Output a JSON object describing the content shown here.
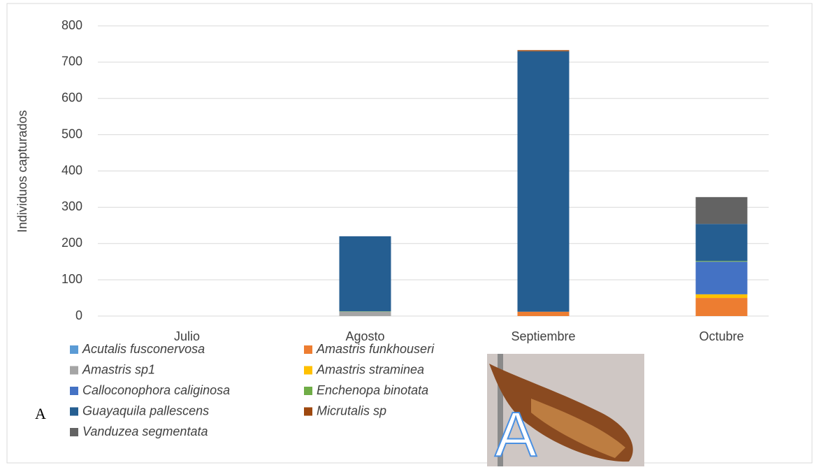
{
  "chart_data": {
    "type": "stacked_bar",
    "y_label": "Individuos capturados",
    "categories": [
      "Julio",
      "Agosto",
      "Septiembre",
      "Octubre"
    ],
    "series": [
      {
        "name": "Acutalis fusconervosa",
        "color": "#5b9bd5",
        "values": [
          0,
          0,
          0,
          0
        ]
      },
      {
        "name": "Amastris funkhouseri",
        "color": "#ed7d31",
        "values": [
          0,
          0,
          12,
          50
        ]
      },
      {
        "name": "Amastris sp1",
        "color": "#a5a5a5",
        "values": [
          0,
          12,
          0,
          0
        ]
      },
      {
        "name": "Amastris straminea",
        "color": "#ffc000",
        "values": [
          0,
          0,
          0,
          10
        ]
      },
      {
        "name": "Calloconophora caliginosa",
        "color": "#4472c4",
        "values": [
          0,
          0,
          0,
          90
        ]
      },
      {
        "name": "Enchenopa binotata",
        "color": "#70ad47",
        "values": [
          0,
          1,
          0,
          2
        ]
      },
      {
        "name": "Guayaquila pallescens",
        "color": "#255e91",
        "values": [
          0,
          207,
          718,
          102
        ]
      },
      {
        "name": "Micrutalis sp",
        "color": "#9e480e",
        "values": [
          0,
          0,
          3,
          0
        ]
      },
      {
        "name": "Vanduzea segmentata",
        "color": "#636363",
        "values": [
          0,
          0,
          0,
          74
        ]
      }
    ],
    "ylim": [
      0,
      800
    ],
    "yticks": [
      0,
      100,
      200,
      300,
      400,
      500,
      600,
      700,
      800
    ],
    "grid": true,
    "annotations": [
      "A",
      "A"
    ]
  }
}
